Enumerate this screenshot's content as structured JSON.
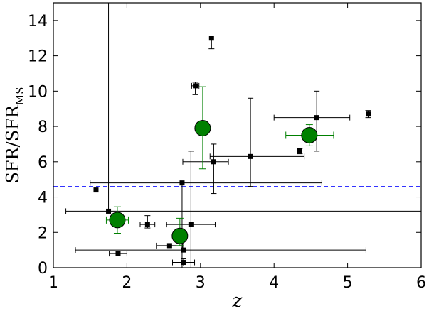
{
  "chart_data": {
    "type": "scatter",
    "title": "",
    "xlabel": "z",
    "ylabel_main": "SFR/SFR",
    "ylabel_sub": "MS",
    "xlim": [
      1,
      6
    ],
    "ylim": [
      0,
      15
    ],
    "x_ticks": [
      1,
      2,
      3,
      4,
      5,
      6
    ],
    "y_ticks": [
      0,
      2,
      4,
      6,
      8,
      10,
      12,
      14
    ],
    "grid": false,
    "reference_line": {
      "y": 4.6,
      "style": "dashed",
      "color": "#3333ff"
    },
    "series": [
      {
        "marker": "square",
        "color": "#000000",
        "points": [
          {
            "x": 1.58,
            "y": 4.4
          },
          {
            "x": 1.75,
            "y": 3.2,
            "xerr": [
              0.58,
              4.25
            ],
            "yerr": [
              0,
              11.8
            ]
          },
          {
            "x": 1.88,
            "y": 0.8,
            "xerr": [
              0.12,
              0.12
            ]
          },
          {
            "x": 2.28,
            "y": 2.45,
            "xerr": [
              0.1,
              0.1
            ],
            "yerr": [
              0.2,
              0.5
            ]
          },
          {
            "x": 2.58,
            "y": 1.25,
            "xerr": [
              0.18,
              0.18
            ]
          },
          {
            "x": 2.75,
            "y": 4.8,
            "xerr": [
              1.25,
              1.9
            ],
            "yerr": [
              4.8,
              0
            ]
          },
          {
            "x": 2.77,
            "y": 1.0,
            "xerr": [
              1.47,
              2.48
            ]
          },
          {
            "x": 2.77,
            "y": 0.3,
            "xerr": [
              0.15,
              0.15
            ],
            "yerr": [
              0.2,
              0.2
            ]
          },
          {
            "x": 2.87,
            "y": 2.45,
            "xerr": [
              0.33,
              0.33
            ],
            "yerr": [
              2.45,
              4.15
            ]
          },
          {
            "x": 2.93,
            "y": 10.3,
            "xerr": [
              0.05,
              0.05
            ],
            "yerr": [
              0.5,
              0.2
            ]
          },
          {
            "x": 3.15,
            "y": 13.0,
            "yerr": [
              0.6,
              0
            ]
          },
          {
            "x": 3.18,
            "y": 6.0,
            "xerr": [
              0.42,
              0.2
            ],
            "yerr": [
              1.8,
              1.0
            ]
          },
          {
            "x": 3.68,
            "y": 6.3,
            "xerr": [
              0.55,
              0.73
            ],
            "yerr": [
              1.7,
              3.3
            ]
          },
          {
            "x": 4.35,
            "y": 6.6,
            "yerr": [
              0.15,
              0.15
            ]
          },
          {
            "x": 4.58,
            "y": 8.5,
            "xerr": [
              0.58,
              0.45
            ],
            "yerr": [
              1.9,
              1.5
            ]
          },
          {
            "x": 5.28,
            "y": 8.7,
            "yerr": [
              0.2,
              0.2
            ]
          }
        ]
      },
      {
        "marker": "circle",
        "color": "#008000",
        "points": [
          {
            "x": 1.87,
            "y": 2.7,
            "xerr": [
              0.15,
              0.15
            ],
            "yerr": [
              0.75,
              0.75
            ]
          },
          {
            "x": 2.72,
            "y": 1.8,
            "xerr": [
              0.07,
              0.07
            ],
            "yerr": [
              0.55,
              1.0
            ]
          },
          {
            "x": 3.03,
            "y": 7.9,
            "xerr": [
              0.05,
              0.05
            ],
            "yerr": [
              2.3,
              2.35
            ]
          },
          {
            "x": 4.48,
            "y": 7.5,
            "xerr": [
              0.32,
              0.33
            ],
            "yerr": [
              0.6,
              0.6
            ]
          }
        ]
      }
    ]
  }
}
